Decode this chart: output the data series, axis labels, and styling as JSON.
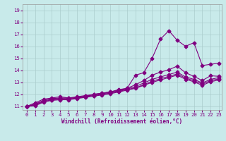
{
  "xlabel": "Windchill (Refroidissement éolien,°C)",
  "bg_color": "#c8eaea",
  "line_color": "#800080",
  "grid_color": "#aacccc",
  "xlim": [
    -0.5,
    23.3
  ],
  "ylim": [
    10.7,
    19.5
  ],
  "yticks": [
    11,
    12,
    13,
    14,
    15,
    16,
    17,
    18,
    19
  ],
  "xticks": [
    0,
    1,
    2,
    3,
    4,
    5,
    6,
    7,
    8,
    9,
    10,
    11,
    12,
    13,
    14,
    15,
    16,
    17,
    18,
    19,
    20,
    21,
    22,
    23
  ],
  "series": [
    [
      11.0,
      11.3,
      11.6,
      11.7,
      11.8,
      11.7,
      11.7,
      11.8,
      12.0,
      12.1,
      12.2,
      12.4,
      12.5,
      13.6,
      13.8,
      15.0,
      16.6,
      17.3,
      16.5,
      16.0,
      16.3,
      14.4,
      14.5,
      14.6
    ],
    [
      11.0,
      11.2,
      11.5,
      11.65,
      11.7,
      11.7,
      11.8,
      11.9,
      12.0,
      12.1,
      12.2,
      12.35,
      12.5,
      12.8,
      13.15,
      13.6,
      13.85,
      14.05,
      14.35,
      13.8,
      13.5,
      13.15,
      13.55,
      13.5
    ],
    [
      11.0,
      11.15,
      11.45,
      11.6,
      11.65,
      11.65,
      11.75,
      11.85,
      11.95,
      12.05,
      12.15,
      12.3,
      12.45,
      12.65,
      12.95,
      13.25,
      13.45,
      13.65,
      13.85,
      13.45,
      13.25,
      12.95,
      13.25,
      13.4
    ],
    [
      11.0,
      11.1,
      11.4,
      11.55,
      11.6,
      11.6,
      11.7,
      11.8,
      11.9,
      12.0,
      12.1,
      12.25,
      12.4,
      12.55,
      12.8,
      13.1,
      13.3,
      13.5,
      13.7,
      13.35,
      13.15,
      12.85,
      13.15,
      13.3
    ],
    [
      11.0,
      11.05,
      11.35,
      11.5,
      11.55,
      11.55,
      11.65,
      11.75,
      11.85,
      11.95,
      12.05,
      12.2,
      12.35,
      12.5,
      12.75,
      13.0,
      13.2,
      13.4,
      13.6,
      13.25,
      13.05,
      12.75,
      13.05,
      13.2
    ]
  ],
  "main_series_idx": 0,
  "marker": "D",
  "markersize": 2.5,
  "linewidth": 0.8,
  "tick_fontsize": 5.2,
  "xlabel_fontsize": 5.5
}
